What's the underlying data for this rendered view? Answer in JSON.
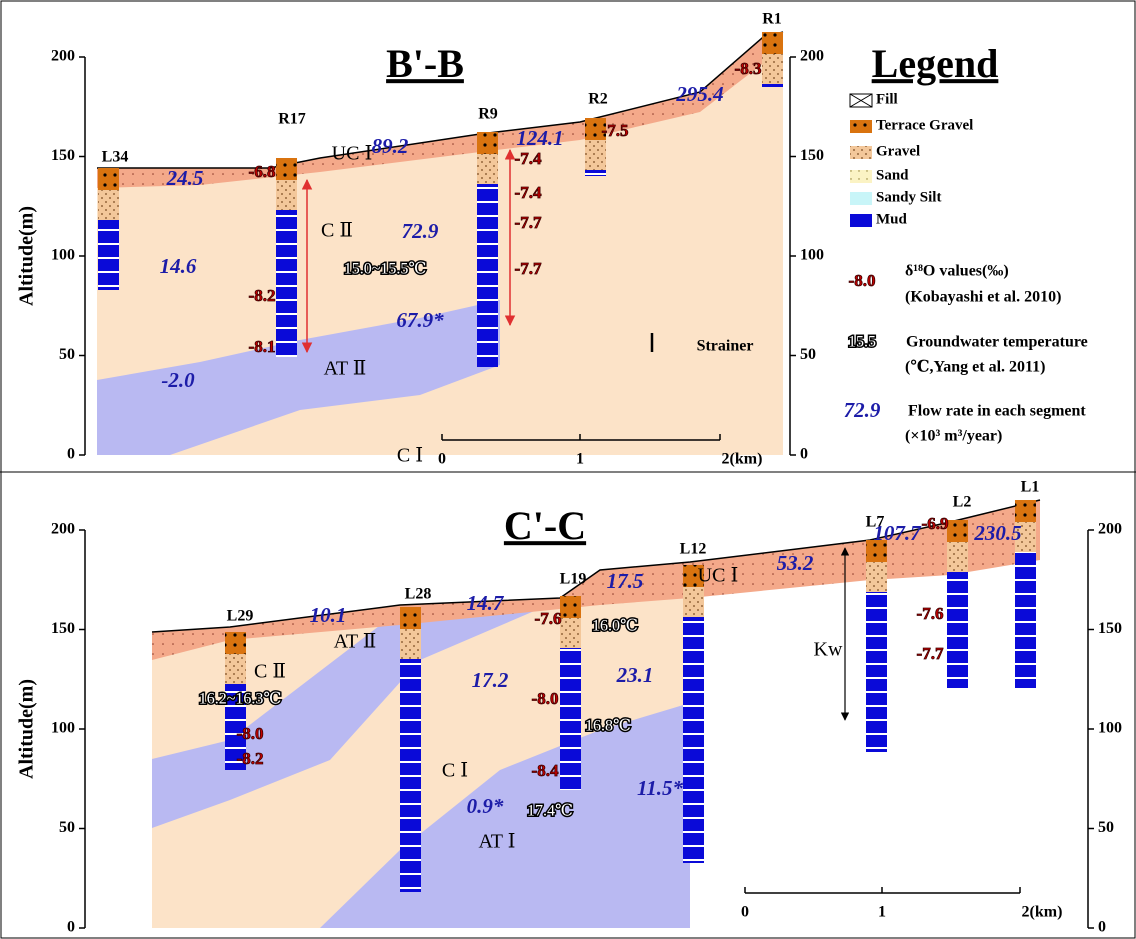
{
  "panels": [
    {
      "title": "B'-B",
      "y_axis_label": "Altitude(m)",
      "left_ticks": [
        0,
        50,
        100,
        150,
        200
      ],
      "right_ticks": [
        0,
        50,
        100,
        150,
        200
      ],
      "scale_labels": [
        "0",
        "1",
        "2(km)"
      ],
      "boreholes": [
        "L34",
        "R17",
        "R9",
        "R2",
        "R1"
      ],
      "units": [
        "UC Ⅰ",
        "C Ⅱ",
        "AT Ⅱ",
        "C Ⅰ"
      ],
      "flow_rates": [
        "24.5",
        "89.2",
        "124.1",
        "295.4",
        "14.6",
        "72.9",
        "67.9*",
        "-2.0"
      ],
      "isotopes": [
        "-6.8",
        "-7.4",
        "-7.4",
        "-7.7",
        "-7.7",
        "-7.5",
        "-8.3",
        "-8.2",
        "-8.1"
      ],
      "temperatures": [
        "15.0~15.5℃"
      ],
      "strainer_label": "Strainer"
    },
    {
      "title": "C'-C",
      "y_axis_label": "Altitude(m)",
      "left_ticks": [
        0,
        50,
        100,
        150,
        200
      ],
      "right_ticks": [
        0,
        50,
        100,
        150,
        200
      ],
      "scale_labels": [
        "0",
        "1",
        "2(km)"
      ],
      "boreholes": [
        "L29",
        "L28",
        "L19",
        "L12",
        "L7",
        "L2",
        "L1"
      ],
      "units": [
        "UC Ⅰ",
        "C Ⅱ",
        "AT Ⅱ",
        "C Ⅰ",
        "AT Ⅰ",
        "Kw"
      ],
      "flow_rates": [
        "10.1",
        "14.7",
        "17.5",
        "53.2",
        "107.7",
        "230.5",
        "17.2",
        "23.1",
        "0.9*",
        "11.5*"
      ],
      "isotopes": [
        "-7.6",
        "-8.0",
        "-8.4",
        "-8.0",
        "-8.2",
        "-6.9",
        "-7.6",
        "-7.7"
      ],
      "temperatures": [
        "16.0℃",
        "16.2~16.3℃",
        "16.8℃",
        "17.4℃"
      ]
    }
  ],
  "legend": {
    "title": "Legend",
    "items": [
      "Fill",
      "Terrace Gravel",
      "Gravel",
      "Sand",
      "Sandy Silt",
      "Mud"
    ],
    "isotope_sample": "-8.0",
    "isotope_text": "δ¹⁸O values(‰)",
    "isotope_source": "(Kobayashi et al. 2010)",
    "temp_sample": "15.5",
    "temp_text": "Groundwater temperature",
    "temp_source": "(℃,Yang et al. 2011)",
    "flow_sample": "72.9",
    "flow_text": "Flow rate in each segment",
    "flow_unit": "(×10³ m³/year)"
  }
}
